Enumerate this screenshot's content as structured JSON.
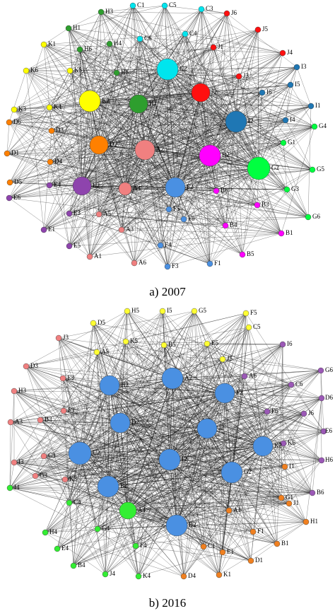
{
  "panels": [
    {
      "caption": "a) 2007",
      "nodes": [
        {
          "label": "C1",
          "color": "#00e5ee"
        },
        {
          "label": "C5",
          "color": "#00e5ee"
        },
        {
          "label": "C3",
          "color": "#00e5ee"
        },
        {
          "label": "J6",
          "color": "#ff1010"
        },
        {
          "label": "H3",
          "color": "#2e9e2e"
        },
        {
          "label": "H1",
          "color": "#2e9e2e"
        },
        {
          "label": "C6",
          "color": "#00e5ee"
        },
        {
          "label": "C4",
          "color": "#00e5ee"
        },
        {
          "label": "J5",
          "color": "#ff1010"
        },
        {
          "label": "K1",
          "color": "#ffff00"
        },
        {
          "label": "H6",
          "color": "#2e9e2e"
        },
        {
          "label": "H4",
          "color": "#2e9e2e"
        },
        {
          "label": "J1",
          "color": "#ff1010"
        },
        {
          "label": "J4",
          "color": "#ff1010"
        },
        {
          "label": "C2",
          "color": "#00e5ee"
        },
        {
          "label": "K5",
          "color": "#ffff00"
        },
        {
          "label": "H5",
          "color": "#2e9e2e"
        },
        {
          "label": "J3",
          "color": "#ff1010"
        },
        {
          "label": "I3",
          "color": "#1f77b4"
        },
        {
          "label": "K6",
          "color": "#ffff00"
        },
        {
          "label": "K2",
          "color": "#ffff00"
        },
        {
          "label": "H2",
          "color": "#2e9e2e"
        },
        {
          "label": "J2",
          "color": "#ff1010"
        },
        {
          "label": "I5",
          "color": "#1f77b4"
        },
        {
          "label": "I6",
          "color": "#1f77b4"
        },
        {
          "label": "K3",
          "color": "#ffff00"
        },
        {
          "label": "K4",
          "color": "#ffff00"
        },
        {
          "label": "I2",
          "color": "#1f77b4"
        },
        {
          "label": "I1",
          "color": "#1f77b4"
        },
        {
          "label": "D6",
          "color": "#ff8000"
        },
        {
          "label": "D3",
          "color": "#ff8000"
        },
        {
          "label": "I4",
          "color": "#1f77b4"
        },
        {
          "label": "G4",
          "color": "#00ff40"
        },
        {
          "label": "D2",
          "color": "#ff8000"
        },
        {
          "label": "A2",
          "color": "#f08080"
        },
        {
          "label": "B2",
          "color": "#ff00ff"
        },
        {
          "label": "G1",
          "color": "#00ff40"
        },
        {
          "label": "D1",
          "color": "#ff8000"
        },
        {
          "label": "D4",
          "color": "#ff8000"
        },
        {
          "label": "G2",
          "color": "#00ff40"
        },
        {
          "label": "G5",
          "color": "#00ff40"
        },
        {
          "label": "D5",
          "color": "#ff8000"
        },
        {
          "label": "E4",
          "color": "#8e44ad"
        },
        {
          "label": "E2",
          "color": "#8e44ad"
        },
        {
          "label": "A4",
          "color": "#f08080"
        },
        {
          "label": "F2",
          "color": "#4a90e2"
        },
        {
          "label": "B6",
          "color": "#ff00ff"
        },
        {
          "label": "G3",
          "color": "#00ff40"
        },
        {
          "label": "E6",
          "color": "#8e44ad"
        },
        {
          "label": "B3",
          "color": "#ff00ff"
        },
        {
          "label": "E3",
          "color": "#8e44ad"
        },
        {
          "label": "A5",
          "color": "#f08080"
        },
        {
          "label": "F5",
          "color": "#4a90e2"
        },
        {
          "label": "G6",
          "color": "#00ff40"
        },
        {
          "label": "E1",
          "color": "#8e44ad"
        },
        {
          "label": "A3",
          "color": "#f08080"
        },
        {
          "label": "F6",
          "color": "#4a90e2"
        },
        {
          "label": "B4",
          "color": "#ff00ff"
        },
        {
          "label": "F4",
          "color": "#4a90e2"
        },
        {
          "label": "E5",
          "color": "#8e44ad"
        },
        {
          "label": "A1",
          "color": "#f08080"
        },
        {
          "label": "B1",
          "color": "#ff00ff"
        },
        {
          "label": "B5",
          "color": "#ff00ff"
        },
        {
          "label": "A6",
          "color": "#f08080"
        },
        {
          "label": "F3",
          "color": "#4a90e2"
        },
        {
          "label": "F1",
          "color": "#4a90e2"
        }
      ]
    },
    {
      "caption": "b) 2016",
      "nodes": [
        {
          "label": "H5",
          "color": "#ffff33"
        },
        {
          "label": "I5",
          "color": "#ffff33"
        },
        {
          "label": "G5",
          "color": "#ffff33"
        },
        {
          "label": "F5",
          "color": "#ffff33"
        },
        {
          "label": "D5",
          "color": "#ffff33"
        },
        {
          "label": "C5",
          "color": "#ffff33"
        },
        {
          "label": "J3",
          "color": "#f08080"
        },
        {
          "label": "K5",
          "color": "#ffff33"
        },
        {
          "label": "B5",
          "color": "#ffff33"
        },
        {
          "label": "E5",
          "color": "#ffff33"
        },
        {
          "label": "I6",
          "color": "#9b59b6"
        },
        {
          "label": "A5",
          "color": "#ffff33"
        },
        {
          "label": "J5",
          "color": "#ffff33"
        },
        {
          "label": "D3",
          "color": "#f08080"
        },
        {
          "label": "G6",
          "color": "#9b59b6"
        },
        {
          "label": "H2",
          "color": "#4a90e2"
        },
        {
          "label": "A2",
          "color": "#4a90e2"
        },
        {
          "label": "F2",
          "color": "#4a90e2"
        },
        {
          "label": "A6",
          "color": "#9b59b6"
        },
        {
          "label": "C6",
          "color": "#9b59b6"
        },
        {
          "label": "E3",
          "color": "#f08080"
        },
        {
          "label": "H3",
          "color": "#f08080"
        },
        {
          "label": "D6",
          "color": "#9b59b6"
        },
        {
          "label": "F3",
          "color": "#f08080"
        },
        {
          "label": "F6",
          "color": "#9b59b6"
        },
        {
          "label": "J6",
          "color": "#9b59b6"
        },
        {
          "label": "D2",
          "color": "#4a90e2"
        },
        {
          "label": "J2",
          "color": "#4a90e2"
        },
        {
          "label": "B3",
          "color": "#f08080"
        },
        {
          "label": "A3",
          "color": "#f08080"
        },
        {
          "label": "E6",
          "color": "#9b59b6"
        },
        {
          "label": "K6",
          "color": "#9b59b6"
        },
        {
          "label": "C3",
          "color": "#f08080"
        },
        {
          "label": "C2",
          "color": "#4a90e2"
        },
        {
          "label": "I2",
          "color": "#4a90e2"
        },
        {
          "label": "K2",
          "color": "#4a90e2"
        },
        {
          "label": "I3",
          "color": "#f08080"
        },
        {
          "label": "G3",
          "color": "#f08080"
        },
        {
          "label": "I1",
          "color": "#f08020"
        },
        {
          "label": "H6",
          "color": "#9b59b6"
        },
        {
          "label": "G2",
          "color": "#4a90e2"
        },
        {
          "label": "E2",
          "color": "#4a90e2"
        },
        {
          "label": "K3",
          "color": "#f08080"
        },
        {
          "label": "B6",
          "color": "#9b59b6"
        },
        {
          "label": "I4",
          "color": "#33ee33"
        },
        {
          "label": "C4",
          "color": "#33ee33"
        },
        {
          "label": "A4",
          "color": "#33ee33"
        },
        {
          "label": "G1",
          "color": "#f08020"
        },
        {
          "label": "J1",
          "color": "#f08020"
        },
        {
          "label": "A1",
          "color": "#f08020"
        },
        {
          "label": "H1",
          "color": "#f08020"
        },
        {
          "label": "B2",
          "color": "#4a90e2"
        },
        {
          "label": "H4",
          "color": "#33ee33"
        },
        {
          "label": "G4",
          "color": "#33ee33"
        },
        {
          "label": "F1",
          "color": "#f08020"
        },
        {
          "label": "F4",
          "color": "#33ee33"
        },
        {
          "label": "C1",
          "color": "#f08020"
        },
        {
          "label": "B1",
          "color": "#f08020"
        },
        {
          "label": "E4",
          "color": "#33ee33"
        },
        {
          "label": "E1",
          "color": "#f08020"
        },
        {
          "label": "D1",
          "color": "#f08020"
        },
        {
          "label": "B4",
          "color": "#33ee33"
        },
        {
          "label": "J4",
          "color": "#33ee33"
        },
        {
          "label": "K4",
          "color": "#33ee33"
        },
        {
          "label": "D4",
          "color": "#f08020"
        },
        {
          "label": "K1",
          "color": "#f08020"
        }
      ]
    }
  ]
}
